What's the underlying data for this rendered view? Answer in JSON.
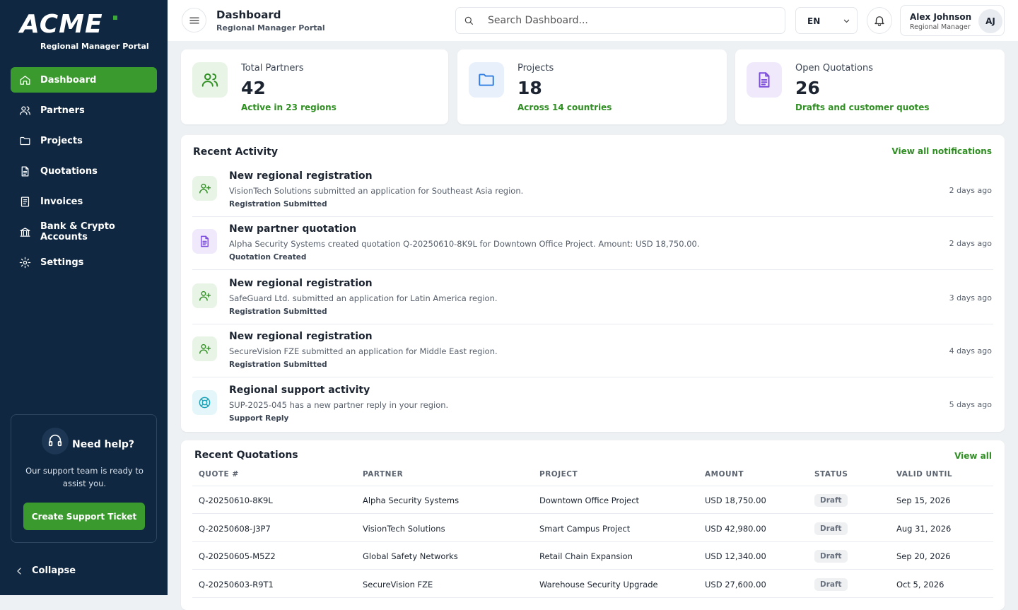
{
  "sidebar": {
    "logo": "ACME",
    "portal": "Regional Manager Portal",
    "nav": [
      "Dashboard",
      "Partners",
      "Projects",
      "Quotations",
      "Invoices",
      "Bank & Crypto Accounts",
      "Settings"
    ],
    "help": {
      "title": "Need help?",
      "text": "Our support team is ready to assist you.",
      "button": "Create Support Ticket"
    },
    "collapse": "Collapse"
  },
  "header": {
    "title": "Dashboard",
    "subtitle": "Regional Manager Portal",
    "search": "Search Dashboard...",
    "language": "EN",
    "user": {
      "name": "Alex Johnson",
      "role": "Regional Manager",
      "initials": "AJ"
    }
  },
  "stats": [
    {
      "label": "Total Partners",
      "value": 42,
      "note": "Active in 23 regions"
    },
    {
      "label": "Projects",
      "value": 18,
      "note": "Across 14 countries"
    },
    {
      "label": "Open Quotations",
      "value": 26,
      "note": "Drafts and customer quotes"
    }
  ],
  "activity": {
    "title": "Recent Activity",
    "link": "View all notifications",
    "items": [
      {
        "title": "New regional registration",
        "text": "VisionTech Solutions submitted an application for Southeast Asia region.",
        "tag": "Registration Submitted",
        "time": "2 days ago"
      },
      {
        "title": "New partner quotation",
        "text": "Alpha Security Systems created quotation Q-20250610-8K9L for Downtown Office Project. Amount: USD 18,750.00.",
        "tag": "Quotation Created",
        "time": "2 days ago"
      },
      {
        "title": "New regional registration",
        "text": "SafeGuard Ltd. submitted an application for Latin America region.",
        "tag": "Registration Submitted",
        "time": "3 days ago"
      },
      {
        "title": "New regional registration",
        "text": "SecureVision FZE submitted an application for Middle East region.",
        "tag": "Registration Submitted",
        "time": "4 days ago"
      },
      {
        "title": "Regional support activity",
        "text": "SUP-2025-045 has a new partner reply in your region.",
        "tag": "Support Reply",
        "time": "5 days ago"
      }
    ]
  },
  "quotations": {
    "title": "Recent Quotations",
    "link": "View all",
    "columns": [
      "QUOTE #",
      "PARTNER",
      "PROJECT",
      "AMOUNT",
      "STATUS",
      "VALID UNTIL"
    ],
    "rows": [
      [
        "Q-20250610-8K9L",
        "Alpha Security Systems",
        "Downtown Office Project",
        "USD 18,750.00",
        "Draft",
        "Sep 15, 2026"
      ],
      [
        "Q-20250608-J3P7",
        "VisionTech Solutions",
        "Smart Campus Project",
        "USD 42,980.00",
        "Draft",
        "Aug 31, 2026"
      ],
      [
        "Q-20250605-M5Z2",
        "Global Safety Networks",
        "Retail Chain Expansion",
        "USD 12,340.00",
        "Draft",
        "Sep 20, 2026"
      ],
      [
        "Q-20250603-R9T1",
        "SecureVision FZE",
        "Warehouse Security Upgrade",
        "USD 27,600.00",
        "Draft",
        "Oct 5, 2026"
      ]
    ]
  }
}
